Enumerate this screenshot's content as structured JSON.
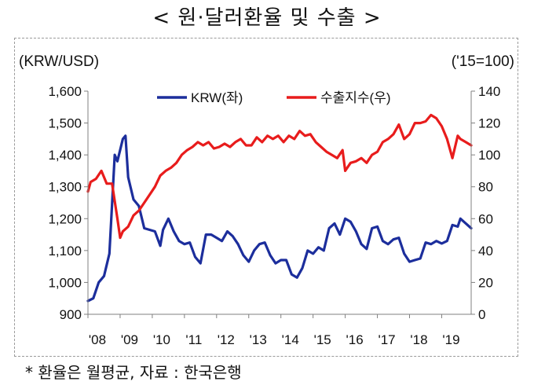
{
  "header": {
    "title": "< 원·달러환율 및 수출 >"
  },
  "footer": {
    "note": "* 환율은 월평균, 자료 : 한국은행"
  },
  "colors": {
    "krw": "#1c2e9c",
    "export": "#e81c1c",
    "axis": "#808080"
  },
  "chart_data": {
    "type": "line",
    "left_unit": "(KRW/USD)",
    "right_unit": "('15=100)",
    "x_ticks": [
      "'08",
      "'09",
      "'10",
      "'11",
      "'12",
      "'13",
      "'14",
      "'15",
      "'16",
      "'17",
      "'18",
      "'19"
    ],
    "y_left": {
      "ticks": [
        "1,600",
        "1,500",
        "1,400",
        "1,300",
        "1,200",
        "1,100",
        "1,000",
        "900"
      ],
      "range": [
        900,
        1600
      ]
    },
    "y_right": {
      "ticks": [
        "140",
        "120",
        "100",
        "80",
        "60",
        "40",
        "20",
        "0"
      ],
      "range": [
        0,
        140
      ]
    },
    "x_range": [
      "2008-01",
      "2019-12"
    ],
    "series": [
      {
        "name": "KRW(좌)",
        "axis": "left",
        "points": [
          [
            "2008-01",
            942
          ],
          [
            "2008-03",
            950
          ],
          [
            "2008-05",
            1000
          ],
          [
            "2008-07",
            1020
          ],
          [
            "2008-09",
            1090
          ],
          [
            "2008-11",
            1400
          ],
          [
            "2008-12",
            1380
          ],
          [
            "2009-02",
            1450
          ],
          [
            "2009-03",
            1460
          ],
          [
            "2009-04",
            1330
          ],
          [
            "2009-06",
            1260
          ],
          [
            "2009-08",
            1240
          ],
          [
            "2009-10",
            1170
          ],
          [
            "2009-12",
            1165
          ],
          [
            "2010-02",
            1160
          ],
          [
            "2010-04",
            1115
          ],
          [
            "2010-05",
            1165
          ],
          [
            "2010-07",
            1200
          ],
          [
            "2010-09",
            1160
          ],
          [
            "2010-11",
            1130
          ],
          [
            "2011-01",
            1120
          ],
          [
            "2011-03",
            1125
          ],
          [
            "2011-05",
            1080
          ],
          [
            "2011-07",
            1060
          ],
          [
            "2011-09",
            1150
          ],
          [
            "2011-11",
            1150
          ],
          [
            "2012-01",
            1140
          ],
          [
            "2012-03",
            1130
          ],
          [
            "2012-05",
            1160
          ],
          [
            "2012-07",
            1145
          ],
          [
            "2012-09",
            1120
          ],
          [
            "2012-11",
            1085
          ],
          [
            "2013-01",
            1065
          ],
          [
            "2013-03",
            1100
          ],
          [
            "2013-05",
            1120
          ],
          [
            "2013-07",
            1125
          ],
          [
            "2013-09",
            1085
          ],
          [
            "2013-11",
            1060
          ],
          [
            "2014-01",
            1070
          ],
          [
            "2014-03",
            1070
          ],
          [
            "2014-05",
            1025
          ],
          [
            "2014-07",
            1015
          ],
          [
            "2014-09",
            1045
          ],
          [
            "2014-11",
            1100
          ],
          [
            "2015-01",
            1090
          ],
          [
            "2015-03",
            1110
          ],
          [
            "2015-05",
            1100
          ],
          [
            "2015-07",
            1170
          ],
          [
            "2015-09",
            1185
          ],
          [
            "2015-11",
            1150
          ],
          [
            "2016-01",
            1200
          ],
          [
            "2016-03",
            1190
          ],
          [
            "2016-05",
            1160
          ],
          [
            "2016-07",
            1120
          ],
          [
            "2016-09",
            1105
          ],
          [
            "2016-11",
            1170
          ],
          [
            "2017-01",
            1175
          ],
          [
            "2017-03",
            1130
          ],
          [
            "2017-05",
            1120
          ],
          [
            "2017-07",
            1135
          ],
          [
            "2017-09",
            1140
          ],
          [
            "2017-11",
            1090
          ],
          [
            "2018-01",
            1065
          ],
          [
            "2018-03",
            1070
          ],
          [
            "2018-05",
            1075
          ],
          [
            "2018-07",
            1125
          ],
          [
            "2018-09",
            1120
          ],
          [
            "2018-11",
            1130
          ],
          [
            "2019-01",
            1122
          ],
          [
            "2019-03",
            1130
          ],
          [
            "2019-05",
            1180
          ],
          [
            "2019-07",
            1175
          ],
          [
            "2019-08",
            1200
          ],
          [
            "2019-10",
            1185
          ],
          [
            "2019-12",
            1170
          ]
        ]
      },
      {
        "name": "수출지수(우)",
        "axis": "right",
        "points": [
          [
            "2008-01",
            77
          ],
          [
            "2008-02",
            83
          ],
          [
            "2008-04",
            85
          ],
          [
            "2008-06",
            90
          ],
          [
            "2008-08",
            82
          ],
          [
            "2008-10",
            82
          ],
          [
            "2008-12",
            60
          ],
          [
            "2009-01",
            48
          ],
          [
            "2009-02",
            52
          ],
          [
            "2009-04",
            55
          ],
          [
            "2009-06",
            62
          ],
          [
            "2009-08",
            65
          ],
          [
            "2009-10",
            70
          ],
          [
            "2009-12",
            75
          ],
          [
            "2010-02",
            80
          ],
          [
            "2010-04",
            87
          ],
          [
            "2010-06",
            90
          ],
          [
            "2010-08",
            92
          ],
          [
            "2010-10",
            95
          ],
          [
            "2010-12",
            100
          ],
          [
            "2011-02",
            103
          ],
          [
            "2011-04",
            105
          ],
          [
            "2011-06",
            108
          ],
          [
            "2011-08",
            106
          ],
          [
            "2011-10",
            108
          ],
          [
            "2011-12",
            104
          ],
          [
            "2012-02",
            105
          ],
          [
            "2012-04",
            107
          ],
          [
            "2012-06",
            105
          ],
          [
            "2012-08",
            108
          ],
          [
            "2012-10",
            110
          ],
          [
            "2012-12",
            106
          ],
          [
            "2013-02",
            106
          ],
          [
            "2013-04",
            111
          ],
          [
            "2013-06",
            108
          ],
          [
            "2013-08",
            112
          ],
          [
            "2013-10",
            110
          ],
          [
            "2013-12",
            112
          ],
          [
            "2014-02",
            108
          ],
          [
            "2014-04",
            112
          ],
          [
            "2014-06",
            110
          ],
          [
            "2014-08",
            115
          ],
          [
            "2014-10",
            112
          ],
          [
            "2014-12",
            113
          ],
          [
            "2015-02",
            108
          ],
          [
            "2015-04",
            105
          ],
          [
            "2015-06",
            102
          ],
          [
            "2015-08",
            100
          ],
          [
            "2015-10",
            98
          ],
          [
            "2015-12",
            103
          ],
          [
            "2016-01",
            90
          ],
          [
            "2016-03",
            95
          ],
          [
            "2016-05",
            96
          ],
          [
            "2016-07",
            98
          ],
          [
            "2016-09",
            95
          ],
          [
            "2016-11",
            100
          ],
          [
            "2017-01",
            102
          ],
          [
            "2017-03",
            108
          ],
          [
            "2017-05",
            110
          ],
          [
            "2017-07",
            113
          ],
          [
            "2017-09",
            119
          ],
          [
            "2017-11",
            110
          ],
          [
            "2018-01",
            113
          ],
          [
            "2018-03",
            120
          ],
          [
            "2018-05",
            120
          ],
          [
            "2018-07",
            121
          ],
          [
            "2018-09",
            125
          ],
          [
            "2018-11",
            123
          ],
          [
            "2019-01",
            118
          ],
          [
            "2019-03",
            110
          ],
          [
            "2019-05",
            98
          ],
          [
            "2019-07",
            112
          ],
          [
            "2019-08",
            110
          ],
          [
            "2019-10",
            108
          ],
          [
            "2019-12",
            106
          ]
        ]
      }
    ]
  }
}
